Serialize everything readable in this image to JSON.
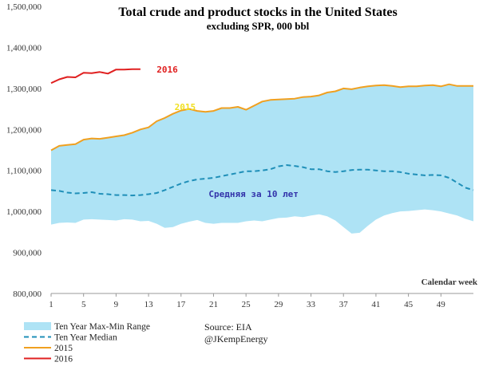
{
  "chart_data": {
    "type": "area",
    "title": "Total crude and product stocks in the United States",
    "subtitle": "excluding SPR, 000 bbl",
    "xlabel": "Calendar week",
    "ylabel": "",
    "ylim": [
      800000,
      1500000
    ],
    "xlim": [
      1,
      53
    ],
    "yticks": [
      "800,000",
      "900,000",
      "1,000,000",
      "1,100,000",
      "1,200,000",
      "1,300,000",
      "1,400,000",
      "1,500,000"
    ],
    "ytick_values": [
      800000,
      900000,
      1000000,
      1100000,
      1200000,
      1300000,
      1400000,
      1500000
    ],
    "xticks": [
      "1",
      "5",
      "9",
      "13",
      "17",
      "21",
      "25",
      "29",
      "33",
      "37",
      "41",
      "45",
      "49"
    ],
    "xtick_values": [
      1,
      5,
      9,
      13,
      17,
      21,
      25,
      29,
      33,
      37,
      41,
      45,
      49
    ],
    "grid": false,
    "legend_position": "bottom-left",
    "range_series": {
      "name": "Ten Year Max-Min Range",
      "color": "#aee3f5",
      "x": [
        1,
        2,
        3,
        4,
        5,
        6,
        7,
        8,
        9,
        10,
        11,
        12,
        13,
        14,
        15,
        16,
        17,
        18,
        19,
        20,
        21,
        22,
        23,
        24,
        25,
        26,
        27,
        28,
        29,
        30,
        31,
        32,
        33,
        34,
        35,
        36,
        37,
        38,
        39,
        40,
        41,
        42,
        43,
        44,
        45,
        46,
        47,
        48,
        49,
        50,
        51,
        52,
        53
      ],
      "max": [
        1150000,
        1160000,
        1162000,
        1164000,
        1175000,
        1178000,
        1177000,
        1180000,
        1183000,
        1186000,
        1192000,
        1200000,
        1205000,
        1220000,
        1228000,
        1238000,
        1246000,
        1250000,
        1245000,
        1243000,
        1245000,
        1252000,
        1252000,
        1255000,
        1248000,
        1258000,
        1268000,
        1272000,
        1273000,
        1274000,
        1275000,
        1279000,
        1280000,
        1283000,
        1290000,
        1293000,
        1300000,
        1298000,
        1302000,
        1305000,
        1307000,
        1308000,
        1306000,
        1303000,
        1305000,
        1305000,
        1307000,
        1308000,
        1305000,
        1310000,
        1306000,
        1306000,
        1306000
      ],
      "min": [
        968000,
        972000,
        973000,
        972000,
        980000,
        981000,
        980000,
        979000,
        978000,
        981000,
        980000,
        976000,
        977000,
        970000,
        960000,
        962000,
        970000,
        975000,
        979000,
        972000,
        970000,
        972000,
        972000,
        972000,
        976000,
        978000,
        976000,
        980000,
        984000,
        985000,
        988000,
        986000,
        990000,
        993000,
        988000,
        978000,
        962000,
        946000,
        948000,
        965000,
        980000,
        990000,
        996000,
        1000000,
        1001000,
        1003000,
        1005000,
        1003000,
        1000000,
        995000,
        990000,
        982000,
        976000
      ]
    },
    "series": [
      {
        "name": "Ten Year Median",
        "color": "#1f8fb8",
        "dashed": true,
        "x": [
          1,
          2,
          3,
          4,
          5,
          6,
          7,
          8,
          9,
          10,
          11,
          12,
          13,
          14,
          15,
          16,
          17,
          18,
          19,
          20,
          21,
          22,
          23,
          24,
          25,
          26,
          27,
          28,
          29,
          30,
          31,
          32,
          33,
          34,
          35,
          36,
          37,
          38,
          39,
          40,
          41,
          42,
          43,
          44,
          45,
          46,
          47,
          48,
          49,
          50,
          51,
          52,
          53
        ],
        "values": [
          1052000,
          1050000,
          1046000,
          1044000,
          1045000,
          1047000,
          1043000,
          1042000,
          1040000,
          1040000,
          1039000,
          1040000,
          1042000,
          1045000,
          1052000,
          1060000,
          1068000,
          1074000,
          1078000,
          1080000,
          1082000,
          1086000,
          1090000,
          1094000,
          1098000,
          1098000,
          1100000,
          1103000,
          1110000,
          1113000,
          1111000,
          1108000,
          1103000,
          1103000,
          1098000,
          1096000,
          1098000,
          1101000,
          1102000,
          1102000,
          1100000,
          1098000,
          1098000,
          1096000,
          1092000,
          1090000,
          1088000,
          1089000,
          1088000,
          1082000,
          1070000,
          1058000,
          1052000
        ]
      },
      {
        "name": "2015",
        "color": "#f0a020",
        "dashed": false,
        "x": [
          1,
          2,
          3,
          4,
          5,
          6,
          7,
          8,
          9,
          10,
          11,
          12,
          13,
          14,
          15,
          16,
          17,
          18,
          19,
          20,
          21,
          22,
          23,
          24,
          25,
          26,
          27,
          28,
          29,
          30,
          31,
          32,
          33,
          34,
          35,
          36,
          37,
          38,
          39,
          40,
          41,
          42,
          43,
          44,
          45,
          46,
          47,
          48,
          49,
          50,
          51,
          52,
          53
        ],
        "values": [
          1149000,
          1160000,
          1162000,
          1164000,
          1175000,
          1178000,
          1177000,
          1180000,
          1183000,
          1186000,
          1192000,
          1200000,
          1205000,
          1220000,
          1228000,
          1238000,
          1246000,
          1250000,
          1245000,
          1243000,
          1245000,
          1252000,
          1252000,
          1255000,
          1248000,
          1258000,
          1268000,
          1272000,
          1273000,
          1274000,
          1275000,
          1279000,
          1280000,
          1283000,
          1290000,
          1293000,
          1300000,
          1298000,
          1302000,
          1305000,
          1307000,
          1308000,
          1306000,
          1303000,
          1305000,
          1305000,
          1307000,
          1308000,
          1305000,
          1310000,
          1306000,
          1306000,
          1306000
        ]
      },
      {
        "name": "2016",
        "color": "#e02020",
        "dashed": false,
        "x": [
          1,
          2,
          3,
          4,
          5,
          6,
          7,
          8,
          9,
          10,
          11,
          12
        ],
        "values": [
          1313000,
          1322000,
          1328000,
          1327000,
          1338000,
          1337000,
          1340000,
          1336000,
          1346000,
          1346000,
          1347000,
          1347000
        ]
      }
    ],
    "annotations": [
      {
        "text": "2016",
        "x": 14.0,
        "y": 1346000,
        "color": "#e02020"
      },
      {
        "text": "2015",
        "x": 16.2,
        "y": 1255000,
        "color": "#f0e020"
      },
      {
        "text": "Средняя за 10 лет",
        "x": 20.4,
        "y": 1043000,
        "color": "#3333aa"
      }
    ]
  },
  "source_lines": [
    "Source: EIA",
    "@JKempEnergy"
  ]
}
